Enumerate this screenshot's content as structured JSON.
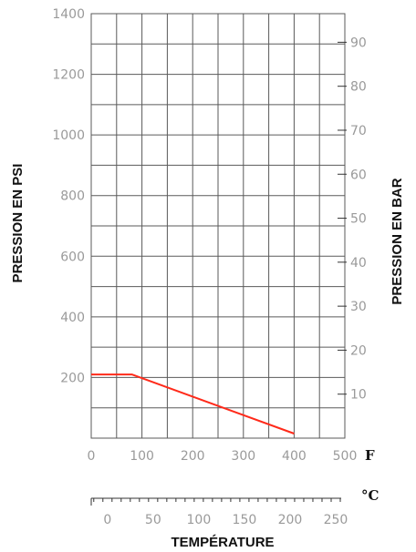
{
  "chart_data": {
    "type": "line",
    "xlabel": "TEMPÉRATURE",
    "ylabel": "PRESSION EN PSI",
    "ylabel_right": "PRESSION EN BAR",
    "x_unit": "F",
    "x2_unit": "°C",
    "xlim": [
      0,
      500
    ],
    "ylim": [
      0,
      1400
    ],
    "y2lim": [
      0,
      96.5
    ],
    "x_ticks": [
      0,
      100,
      200,
      300,
      400,
      500
    ],
    "x2_ticks": [
      0,
      50,
      100,
      150,
      200,
      250
    ],
    "y_ticks": [
      200,
      400,
      600,
      800,
      1000,
      1200,
      1400
    ],
    "y2_ticks": [
      10,
      20,
      30,
      40,
      50,
      60,
      70,
      80,
      90
    ],
    "grid": true,
    "series": [
      {
        "x": [
          0,
          80,
          400
        ],
        "y": [
          210,
          210,
          15
        ]
      }
    ],
    "colors": {
      "line": "#ff2a1a",
      "grid": "#5a5a5a",
      "ticks": "#9a9a9a",
      "text": "#111111"
    }
  }
}
